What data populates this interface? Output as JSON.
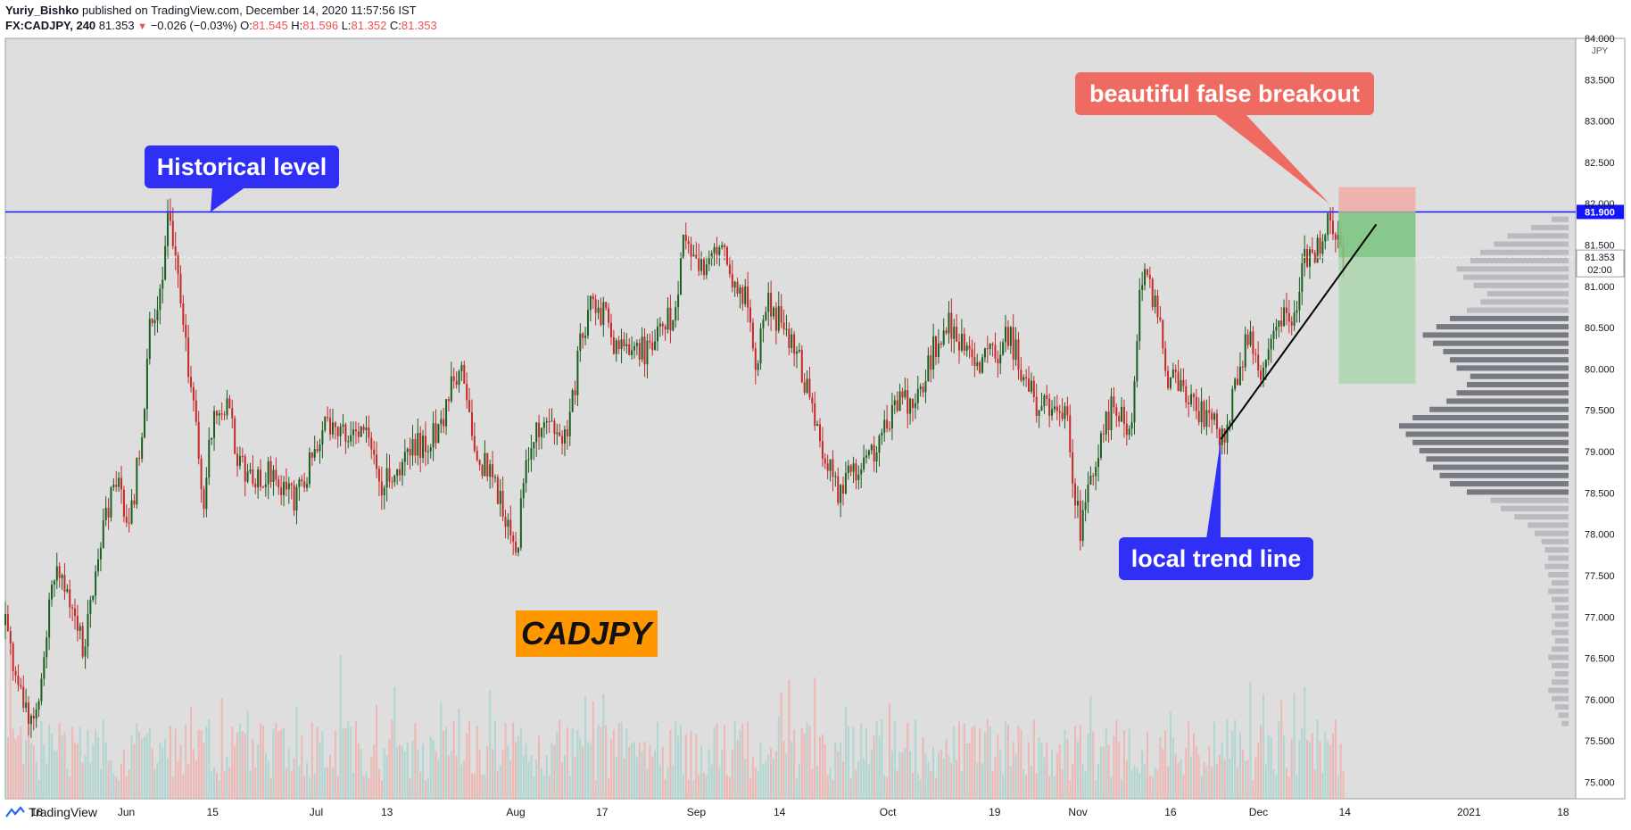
{
  "header": {
    "author": "Yuriy_Bishko",
    "published_text": "published on TradingView.com, December 14, 2020 11:57:56 IST",
    "symbol": "FX:CADJPY, 240",
    "last": "81.353",
    "change": "−0.026 (−0.03%)",
    "open_label": "O:",
    "open": "81.545",
    "high_label": "H:",
    "high": "81.596",
    "low_label": "L:",
    "low": "81.352",
    "close_label": "C:",
    "close": "81.353"
  },
  "footer": {
    "brand": "TradingView"
  },
  "colors": {
    "background": "#dedede",
    "up": "#1b5e20",
    "down": "#c62828",
    "level_line": "#1414ff",
    "annotation_blue": "#2f2ff5",
    "annotation_red": "#ef6a60",
    "ticker_box": "#ff9800"
  },
  "chart_data": {
    "type": "candlestick",
    "title": "CADJPY",
    "currency": "JPY",
    "y_axis": {
      "min": 74.8,
      "max": 84.0,
      "ticks": [
        "84.000",
        "83.500",
        "83.000",
        "82.500",
        "82.000",
        "81.500",
        "81.000",
        "80.500",
        "80.000",
        "79.500",
        "79.000",
        "78.500",
        "78.000",
        "77.500",
        "77.000",
        "76.500",
        "76.000",
        "75.500",
        "75.000"
      ]
    },
    "x_axis": {
      "ticks": [
        {
          "label": "18",
          "t": 0.02
        },
        {
          "label": "Jun",
          "t": 0.077
        },
        {
          "label": "15",
          "t": 0.132
        },
        {
          "label": "Jul",
          "t": 0.198
        },
        {
          "label": "13",
          "t": 0.243
        },
        {
          "label": "Aug",
          "t": 0.325
        },
        {
          "label": "17",
          "t": 0.38
        },
        {
          "label": "Sep",
          "t": 0.44
        },
        {
          "label": "14",
          "t": 0.493
        },
        {
          "label": "Oct",
          "t": 0.562
        },
        {
          "label": "19",
          "t": 0.63
        },
        {
          "label": "Nov",
          "t": 0.683
        },
        {
          "label": "16",
          "t": 0.742
        },
        {
          "label": "Dec",
          "t": 0.798
        },
        {
          "label": "14",
          "t": 0.853
        },
        {
          "label": "2021",
          "t": 0.932
        },
        {
          "label": "18",
          "t": 0.992
        }
      ]
    },
    "price_path": [
      [
        0.0,
        76.9
      ],
      [
        0.01,
        76.0
      ],
      [
        0.02,
        75.7
      ],
      [
        0.03,
        77.6
      ],
      [
        0.042,
        77.2
      ],
      [
        0.05,
        76.6
      ],
      [
        0.06,
        77.9
      ],
      [
        0.07,
        78.6
      ],
      [
        0.08,
        78.2
      ],
      [
        0.088,
        79.4
      ],
      [
        0.092,
        80.6
      ],
      [
        0.097,
        80.8
      ],
      [
        0.1,
        81.2
      ],
      [
        0.104,
        81.85
      ],
      [
        0.108,
        81.4
      ],
      [
        0.112,
        80.6
      ],
      [
        0.12,
        79.6
      ],
      [
        0.126,
        78.2
      ],
      [
        0.13,
        79.3
      ],
      [
        0.14,
        79.6
      ],
      [
        0.15,
        78.8
      ],
      [
        0.16,
        78.6
      ],
      [
        0.17,
        78.8
      ],
      [
        0.185,
        78.4
      ],
      [
        0.195,
        78.9
      ],
      [
        0.205,
        79.4
      ],
      [
        0.215,
        79.3
      ],
      [
        0.23,
        79.2
      ],
      [
        0.24,
        78.6
      ],
      [
        0.25,
        78.8
      ],
      [
        0.265,
        79.1
      ],
      [
        0.275,
        79.2
      ],
      [
        0.285,
        79.8
      ],
      [
        0.292,
        80.0
      ],
      [
        0.298,
        79.0
      ],
      [
        0.31,
        78.7
      ],
      [
        0.318,
        78.3
      ],
      [
        0.325,
        77.7
      ],
      [
        0.332,
        78.9
      ],
      [
        0.34,
        79.3
      ],
      [
        0.35,
        79.2
      ],
      [
        0.358,
        79.1
      ],
      [
        0.366,
        80.3
      ],
      [
        0.374,
        80.9
      ],
      [
        0.382,
        80.6
      ],
      [
        0.39,
        80.2
      ],
      [
        0.4,
        80.3
      ],
      [
        0.41,
        80.2
      ],
      [
        0.42,
        80.5
      ],
      [
        0.428,
        80.8
      ],
      [
        0.432,
        81.5
      ],
      [
        0.44,
        81.2
      ],
      [
        0.45,
        81.3
      ],
      [
        0.458,
        81.4
      ],
      [
        0.466,
        81.0
      ],
      [
        0.472,
        80.8
      ],
      [
        0.478,
        80.0
      ],
      [
        0.484,
        80.8
      ],
      [
        0.492,
        80.6
      ],
      [
        0.5,
        80.4
      ],
      [
        0.51,
        79.8
      ],
      [
        0.516,
        79.3
      ],
      [
        0.522,
        78.9
      ],
      [
        0.53,
        78.5
      ],
      [
        0.54,
        78.8
      ],
      [
        0.55,
        78.9
      ],
      [
        0.556,
        79.1
      ],
      [
        0.562,
        79.4
      ],
      [
        0.57,
        79.6
      ],
      [
        0.58,
        79.6
      ],
      [
        0.59,
        80.2
      ],
      [
        0.6,
        80.55
      ],
      [
        0.61,
        80.3
      ],
      [
        0.62,
        80.0
      ],
      [
        0.63,
        80.2
      ],
      [
        0.64,
        80.4
      ],
      [
        0.65,
        79.8
      ],
      [
        0.66,
        79.5
      ],
      [
        0.67,
        79.6
      ],
      [
        0.676,
        79.4
      ],
      [
        0.68,
        78.7
      ],
      [
        0.685,
        78.0
      ],
      [
        0.69,
        78.5
      ],
      [
        0.7,
        79.3
      ],
      [
        0.706,
        79.6
      ],
      [
        0.712,
        79.4
      ],
      [
        0.718,
        79.3
      ],
      [
        0.722,
        81.1
      ],
      [
        0.728,
        81.0
      ],
      [
        0.734,
        80.6
      ],
      [
        0.74,
        79.9
      ],
      [
        0.75,
        79.7
      ],
      [
        0.76,
        79.5
      ],
      [
        0.77,
        79.3
      ],
      [
        0.776,
        79.2
      ],
      [
        0.784,
        79.9
      ],
      [
        0.792,
        80.4
      ],
      [
        0.8,
        80.0
      ],
      [
        0.808,
        80.5
      ],
      [
        0.816,
        80.6
      ],
      [
        0.822,
        80.7
      ],
      [
        0.826,
        81.4
      ],
      [
        0.832,
        81.3
      ],
      [
        0.838,
        81.5
      ],
      [
        0.842,
        81.9
      ],
      [
        0.848,
        81.5
      ],
      [
        0.852,
        81.35
      ]
    ],
    "horizontal_level": {
      "value": 81.9,
      "label": "81.900"
    },
    "current_price": {
      "value": 81.353,
      "label": "81.353",
      "countdown": "02:00"
    },
    "trend_line": {
      "from": {
        "t": 0.774,
        "price": 79.15
      },
      "to": {
        "t": 0.873,
        "price": 81.75
      }
    },
    "position": {
      "t_start": 0.849,
      "t_end": 0.898,
      "entry": 81.9,
      "stop": 82.2,
      "take_profit": 79.82,
      "current": 81.353
    },
    "volume_profile": {
      "price_levels": [
        81.8,
        81.7,
        81.6,
        81.5,
        81.4,
        81.3,
        81.2,
        81.1,
        81.0,
        80.9,
        80.8,
        80.7,
        80.6,
        80.5,
        80.4,
        80.3,
        80.2,
        80.1,
        80.0,
        79.9,
        79.8,
        79.7,
        79.6,
        79.5,
        79.4,
        79.3,
        79.2,
        79.1,
        79.0,
        78.9,
        78.8,
        78.7,
        78.6,
        78.5,
        78.4,
        78.3,
        78.2,
        78.1,
        78.0,
        77.9,
        77.8,
        77.7,
        77.6,
        77.5,
        77.4,
        77.3,
        77.2,
        77.1,
        77.0,
        76.9,
        76.8,
        76.7,
        76.6,
        76.5,
        76.4,
        76.3,
        76.2,
        76.1,
        76.0,
        75.9,
        75.8,
        75.7
      ],
      "values": [
        0.1,
        0.22,
        0.36,
        0.44,
        0.52,
        0.58,
        0.66,
        0.62,
        0.56,
        0.48,
        0.52,
        0.6,
        0.7,
        0.78,
        0.86,
        0.8,
        0.74,
        0.7,
        0.66,
        0.58,
        0.6,
        0.66,
        0.72,
        0.82,
        0.92,
        1.0,
        0.96,
        0.92,
        0.88,
        0.84,
        0.8,
        0.76,
        0.7,
        0.6,
        0.46,
        0.4,
        0.32,
        0.24,
        0.2,
        0.16,
        0.14,
        0.12,
        0.14,
        0.12,
        0.1,
        0.12,
        0.1,
        0.08,
        0.1,
        0.08,
        0.1,
        0.08,
        0.1,
        0.12,
        0.1,
        0.08,
        0.1,
        0.12,
        0.1,
        0.08,
        0.06,
        0.04
      ]
    },
    "annotations": [
      {
        "text": "Historical level",
        "color": "blue"
      },
      {
        "text": "beautiful false breakout",
        "color": "red"
      },
      {
        "text": "local trend line",
        "color": "blue"
      }
    ],
    "ticker_label": "CADJPY"
  }
}
